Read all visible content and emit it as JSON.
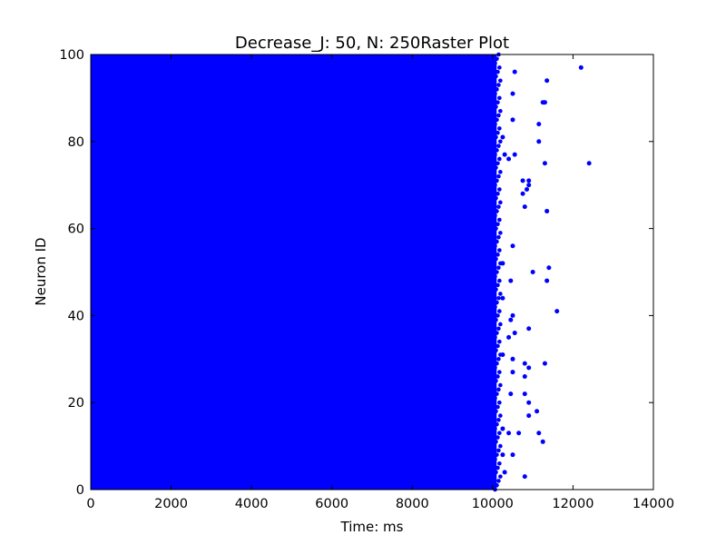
{
  "chart_data": {
    "type": "scatter",
    "title": "Decrease_J: 50, N: 250Raster Plot",
    "xlabel": "Time: ms",
    "ylabel": "Neuron ID",
    "xlim": [
      0,
      14000
    ],
    "ylim": [
      0,
      100
    ],
    "xticks": [
      0,
      2000,
      4000,
      6000,
      8000,
      10000,
      12000,
      14000
    ],
    "yticks": [
      0,
      20,
      40,
      60,
      80,
      100
    ],
    "grid": false,
    "marker_color": "#0000ff",
    "dense_region": {
      "x_range": [
        0,
        10100
      ],
      "y_range": [
        0,
        100
      ],
      "note": "spikes from all neurons densely cover this time window"
    },
    "series": [
      {
        "points": [
          [
            12200,
            97
          ],
          [
            10550,
            96
          ],
          [
            11350,
            94
          ],
          [
            10500,
            91
          ],
          [
            11300,
            89
          ],
          [
            11250,
            89
          ],
          [
            10500,
            85
          ],
          [
            11150,
            84
          ],
          [
            10250,
            81
          ],
          [
            11150,
            80
          ],
          [
            10300,
            77
          ],
          [
            10400,
            76
          ],
          [
            10550,
            77
          ],
          [
            11300,
            75
          ],
          [
            12400,
            75
          ],
          [
            10750,
            71
          ],
          [
            10900,
            71
          ],
          [
            10900,
            70
          ],
          [
            10850,
            69
          ],
          [
            10750,
            68
          ],
          [
            10800,
            65
          ],
          [
            11350,
            64
          ],
          [
            10500,
            56
          ],
          [
            10250,
            52
          ],
          [
            11400,
            51
          ],
          [
            11000,
            50
          ],
          [
            10450,
            48
          ],
          [
            11350,
            48
          ],
          [
            10250,
            44
          ],
          [
            11600,
            41
          ],
          [
            10500,
            40
          ],
          [
            10450,
            39
          ],
          [
            10900,
            37
          ],
          [
            10550,
            36
          ],
          [
            10400,
            35
          ],
          [
            10250,
            31
          ],
          [
            10500,
            30
          ],
          [
            10800,
            29
          ],
          [
            11300,
            29
          ],
          [
            10900,
            28
          ],
          [
            10500,
            27
          ],
          [
            10800,
            26
          ],
          [
            10450,
            22
          ],
          [
            10800,
            22
          ],
          [
            10900,
            20
          ],
          [
            11100,
            18
          ],
          [
            10900,
            17
          ],
          [
            10250,
            14
          ],
          [
            11150,
            13
          ],
          [
            10400,
            13
          ],
          [
            10650,
            13
          ],
          [
            11250,
            11
          ],
          [
            10250,
            8
          ],
          [
            10500,
            8
          ],
          [
            10300,
            4
          ],
          [
            10800,
            3
          ]
        ]
      }
    ]
  }
}
